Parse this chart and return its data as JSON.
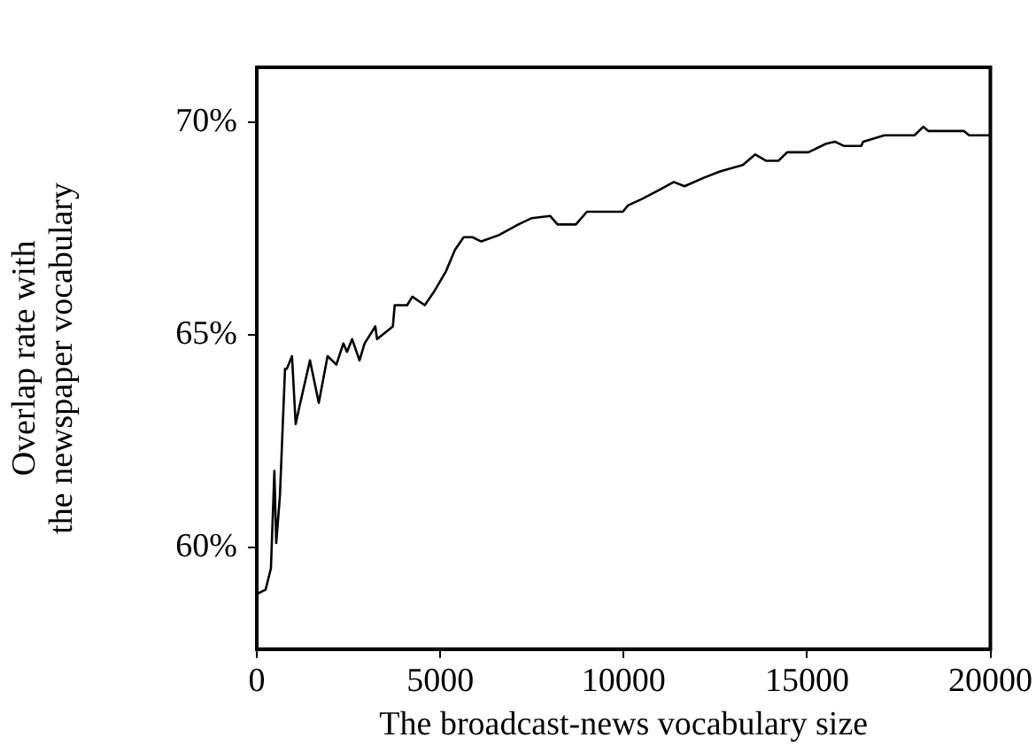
{
  "chart_data": {
    "type": "line",
    "xlabel": "The broadcast-news vocabulary size",
    "ylabel": "Overlap rate with\nthe newspaper vocabulary",
    "xlim": [
      0,
      20000
    ],
    "xticks": [
      0,
      5000,
      10000,
      15000,
      20000
    ],
    "ylim": [
      57.6,
      71.3
    ],
    "yticks": [
      {
        "value": 60,
        "label": "60%"
      },
      {
        "value": 65,
        "label": "65%"
      },
      {
        "value": 70,
        "label": "70%"
      }
    ],
    "grid": false,
    "legend": false,
    "marker": "none",
    "line_style": "solid",
    "series": [
      {
        "color": "#000000",
        "x": [
          0,
          240,
          385,
          480,
          530,
          630,
          770,
          820,
          960,
          1060,
          1160,
          1450,
          1690,
          1930,
          2170,
          2360,
          2460,
          2600,
          2800,
          2940,
          3230,
          3280,
          3710,
          3760,
          4100,
          4240,
          4580,
          4820,
          5160,
          5400,
          5640,
          5880,
          6120,
          6600,
          7130,
          7500,
          8000,
          8200,
          8700,
          9000,
          9400,
          9980,
          10120,
          10500,
          10940,
          11370,
          11660,
          12190,
          12630,
          13250,
          13590,
          13880,
          14220,
          14460,
          15040,
          15520,
          15760,
          16000,
          16480,
          16530,
          17110,
          17930,
          18170,
          18310,
          19280,
          19420,
          20000
        ],
        "values": [
          58.9,
          59.0,
          59.5,
          61.8,
          60.1,
          61.2,
          64.2,
          64.2,
          64.5,
          62.9,
          63.3,
          64.4,
          63.4,
          64.5,
          64.3,
          64.8,
          64.6,
          64.9,
          64.4,
          64.8,
          65.2,
          64.9,
          65.2,
          65.7,
          65.7,
          65.9,
          65.7,
          66.0,
          66.5,
          67.0,
          67.3,
          67.3,
          67.2,
          67.35,
          67.6,
          67.75,
          67.8,
          67.6,
          67.6,
          67.9,
          67.9,
          67.9,
          68.05,
          68.2,
          68.4,
          68.6,
          68.5,
          68.7,
          68.85,
          69.0,
          69.25,
          69.1,
          69.1,
          69.3,
          69.3,
          69.5,
          69.55,
          69.45,
          69.45,
          69.55,
          69.7,
          69.7,
          69.9,
          69.8,
          69.8,
          69.7,
          69.7
        ]
      }
    ]
  }
}
